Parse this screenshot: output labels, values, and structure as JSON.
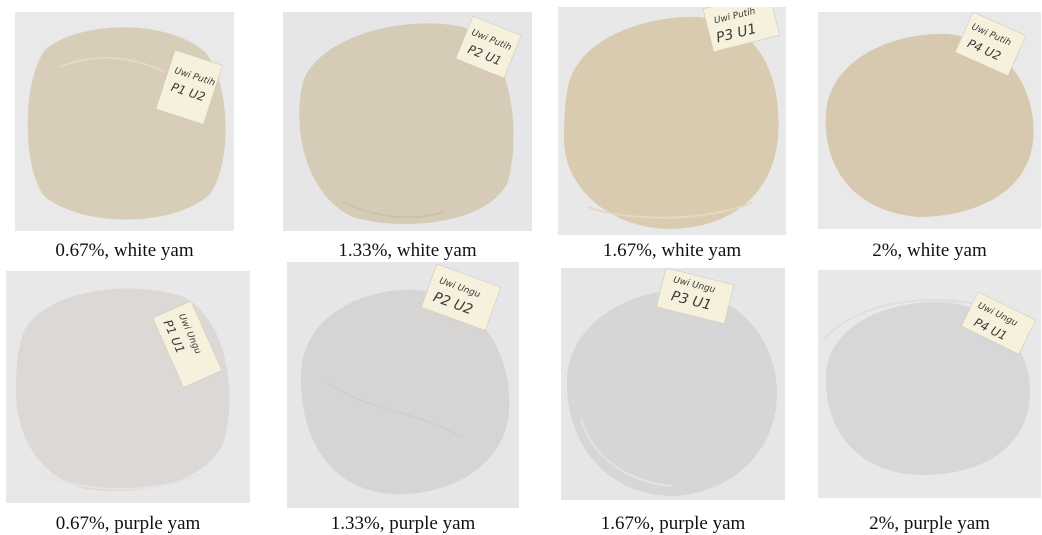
{
  "figure": {
    "panels": [
      {
        "caption": "0.67%, white yam",
        "concentration": "0.67%",
        "yam": "white yam",
        "tag_line1": "Uwi Putih",
        "tag_line2": "P1 U2",
        "film_color": "#d8cdb9",
        "bg_color": "#e9e9ea"
      },
      {
        "caption": "1.33%, white yam",
        "concentration": "1.33%",
        "yam": "white yam",
        "tag_line1": "Uwi Putih",
        "tag_line2": "P2 U1",
        "film_color": "#d6cbb7",
        "bg_color": "#e6e6e8"
      },
      {
        "caption": "1.67%, white yam",
        "concentration": "1.67%",
        "yam": "white yam",
        "tag_line1": "Uwi Putih",
        "tag_line2": "P3 U1",
        "film_color": "#d9cbb0",
        "bg_color": "#e8e8e9"
      },
      {
        "caption": "2%, white yam",
        "concentration": "2%",
        "yam": "white yam",
        "tag_line1": "Uwi Putih",
        "tag_line2": "P4 U2",
        "film_color": "#d6c9b0",
        "bg_color": "#e9e9ea"
      },
      {
        "caption": "0.67%, purple yam",
        "concentration": "0.67%",
        "yam": "purple yam",
        "tag_line1": "Uwi Ungu",
        "tag_line2": "P1 U1",
        "film_color": "#dbd8d6",
        "bg_color": "#e8e8e9"
      },
      {
        "caption": "1.33%, purple yam",
        "concentration": "1.33%",
        "yam": "purple yam",
        "tag_line1": "Uwi Ungu",
        "tag_line2": "P2 U2",
        "film_color": "#d7d5d4",
        "bg_color": "#e6e6e8"
      },
      {
        "caption": "1.67%, purple yam",
        "concentration": "1.67%",
        "yam": "purple yam",
        "tag_line1": "Uwi Ungu",
        "tag_line2": "P3 U1",
        "film_color": "#d6d6d6",
        "bg_color": "#e5e6e7"
      },
      {
        "caption": "2%, purple yam",
        "concentration": "2%",
        "yam": "purple yam",
        "tag_line1": "Uwi Ungu",
        "tag_line2": "P4 U1",
        "film_color": "#d7d7da",
        "bg_color": "#e8e8e9"
      }
    ]
  }
}
